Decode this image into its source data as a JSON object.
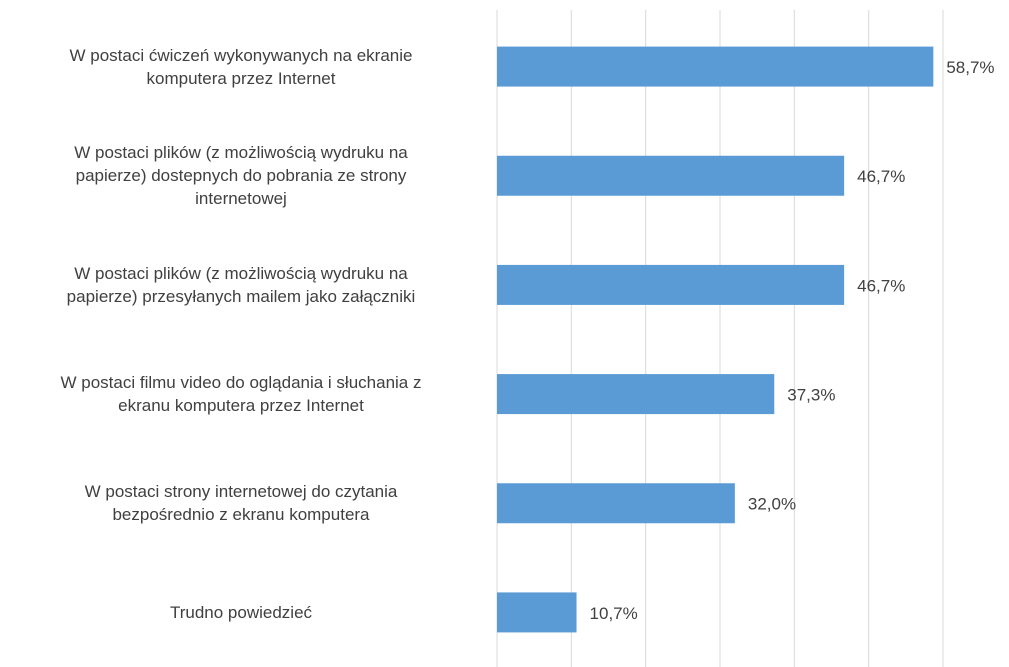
{
  "chart_data": {
    "type": "bar",
    "orientation": "horizontal",
    "categories": [
      "W postaci ćwiczeń wykonywanych na ekranie\nkomputera przez Internet",
      "W postaci plików (z możliwością wydruku na\npapierze) dostepnych do pobrania ze strony\ninternetowej",
      "W postaci plików (z możliwością wydruku na\npapierze) przesyłanych mailem jako załączniki",
      "W postaci filmu video do oglądania i słuchania z\nekranu komputera przez Internet",
      "W postaci strony internetowej do czytania\nbezpośrednio z ekranu komputera",
      "Trudno powiedzieć"
    ],
    "values": [
      58.7,
      46.7,
      46.7,
      37.3,
      32.0,
      10.7
    ],
    "value_labels": [
      "58,7%",
      "46,7%",
      "46,7%",
      "37,3%",
      "32,0%",
      "10,7%"
    ],
    "color": "#5b9bd5",
    "xlim": [
      0,
      60
    ],
    "xticks": [
      0,
      10,
      20,
      30,
      40,
      50,
      60
    ],
    "grid": true
  }
}
